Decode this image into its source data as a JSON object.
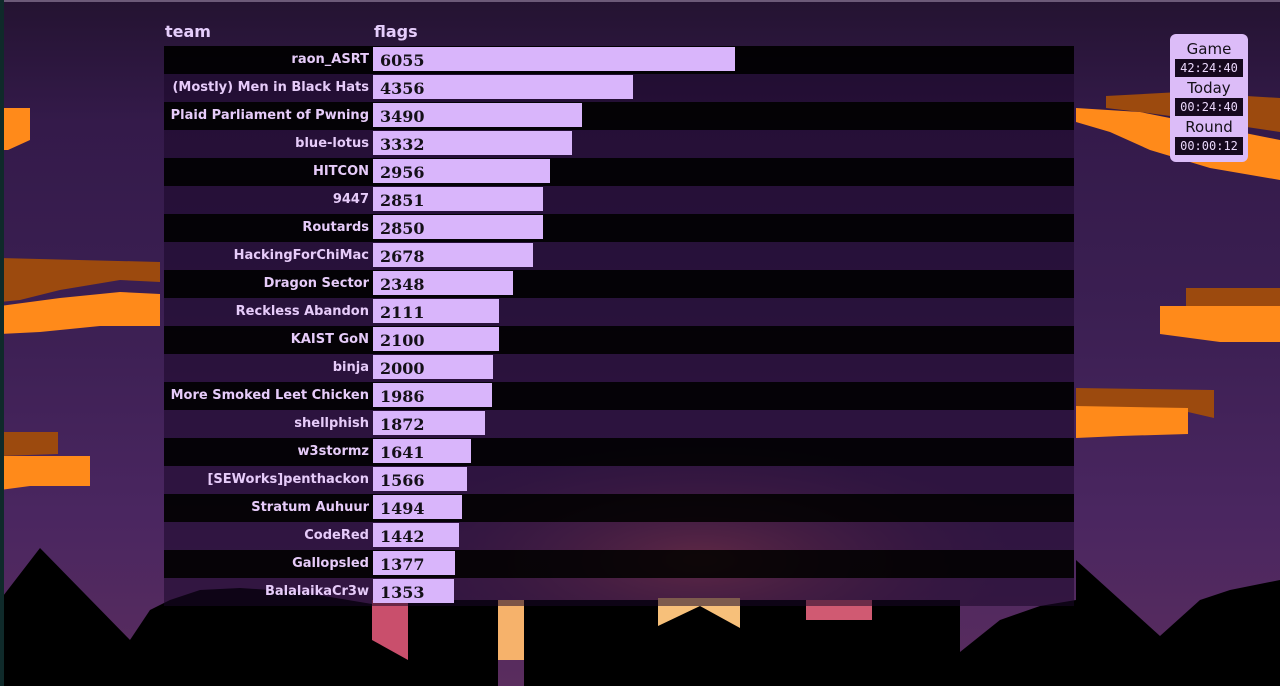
{
  "scoreboard": {
    "header": {
      "team": "team",
      "flags": "flags"
    },
    "max_flags": 6055,
    "rows": [
      {
        "team": "raon_ASRT",
        "flags": 6055
      },
      {
        "team": "(Mostly) Men in Black Hats",
        "flags": 4356
      },
      {
        "team": "Plaid Parliament of Pwning",
        "flags": 3490
      },
      {
        "team": "blue-lotus",
        "flags": 3332
      },
      {
        "team": "HITCON",
        "flags": 2956
      },
      {
        "team": "9447",
        "flags": 2851
      },
      {
        "team": "Routards",
        "flags": 2850
      },
      {
        "team": "HackingForChiMac",
        "flags": 2678
      },
      {
        "team": "Dragon Sector",
        "flags": 2348
      },
      {
        "team": "Reckless Abandon",
        "flags": 2111
      },
      {
        "team": "KAIST GoN",
        "flags": 2100
      },
      {
        "team": "binja",
        "flags": 2000
      },
      {
        "team": "More Smoked Leet Chicken",
        "flags": 1986
      },
      {
        "team": "shellphish",
        "flags": 1872
      },
      {
        "team": "w3stormz",
        "flags": 1641
      },
      {
        "team": "[SEWorks]penthackon",
        "flags": 1566
      },
      {
        "team": "Stratum Auhuur",
        "flags": 1494
      },
      {
        "team": "CodeRed",
        "flags": 1442
      },
      {
        "team": "Gallopsled",
        "flags": 1377
      },
      {
        "team": "BalalaikaCr3w",
        "flags": 1353
      }
    ]
  },
  "clock": {
    "game_label": "Game",
    "game_time": "42:24:40",
    "today_label": "Today",
    "today_time": "00:24:40",
    "round_label": "Round",
    "round_time": "00:00:12"
  },
  "colors": {
    "bar": "#d9b5fb",
    "cloud": "#ff8a1a",
    "cloud_shadow": "#9c4a0e"
  }
}
